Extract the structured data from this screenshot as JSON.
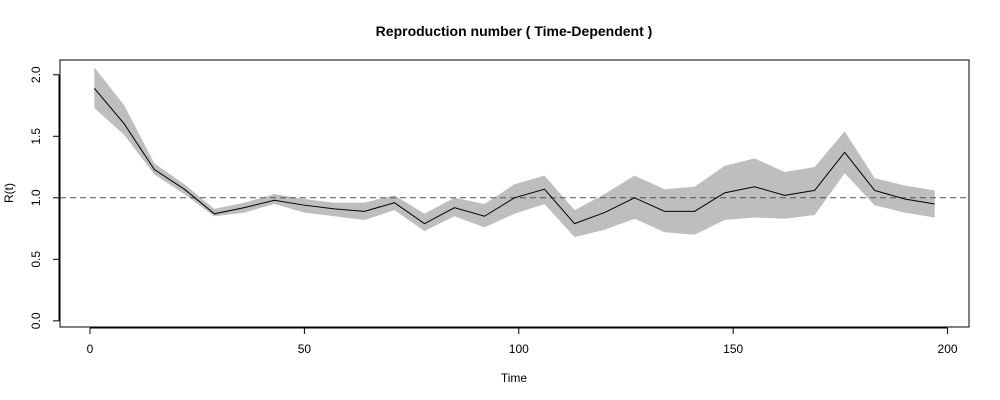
{
  "chart_data": {
    "type": "line",
    "title": "Reproduction number ( Time-Dependent )",
    "xlabel": "Time",
    "ylabel": "R(t)",
    "xlim": [
      -7,
      205
    ],
    "ylim": [
      -0.05,
      2.12
    ],
    "xticks": [
      0,
      50,
      100,
      150,
      200
    ],
    "yticks": [
      0.0,
      0.5,
      1.0,
      1.5,
      2.0
    ],
    "xtick_labels": [
      "0",
      "50",
      "100",
      "150",
      "200"
    ],
    "ytick_labels": [
      "0.0",
      "0.5",
      "1.0",
      "1.5",
      "2.0"
    ],
    "reference_line": {
      "y": 1.0,
      "style": "dashed"
    },
    "grid": false,
    "colors": {
      "line": "#000000",
      "band": "#bebebe",
      "reference": "#555555"
    },
    "series": [
      {
        "x": [
          1,
          8,
          15,
          22,
          29,
          36,
          43,
          50,
          57,
          64,
          71,
          78,
          85,
          92,
          99,
          106,
          113,
          120,
          127,
          134,
          141,
          148,
          155,
          162,
          169,
          176,
          183,
          190,
          197
        ],
        "y": [
          1.89,
          1.6,
          1.23,
          1.07,
          0.87,
          0.92,
          0.98,
          0.94,
          0.91,
          0.89,
          0.96,
          0.79,
          0.92,
          0.85,
          1.0,
          1.07,
          0.79,
          0.88,
          1.0,
          0.89,
          0.89,
          1.04,
          1.09,
          1.02,
          1.06,
          1.37,
          1.06,
          0.99,
          0.95
        ],
        "lower": [
          1.73,
          1.51,
          1.19,
          1.03,
          0.85,
          0.88,
          0.95,
          0.88,
          0.85,
          0.82,
          0.9,
          0.73,
          0.85,
          0.76,
          0.87,
          0.95,
          0.68,
          0.74,
          0.83,
          0.72,
          0.7,
          0.82,
          0.84,
          0.83,
          0.86,
          1.2,
          0.94,
          0.88,
          0.84
        ],
        "upper": [
          2.06,
          1.75,
          1.28,
          1.11,
          0.91,
          0.96,
          1.03,
          0.99,
          0.96,
          0.96,
          1.02,
          0.87,
          1.0,
          0.95,
          1.11,
          1.18,
          0.9,
          1.03,
          1.18,
          1.07,
          1.09,
          1.26,
          1.32,
          1.21,
          1.25,
          1.54,
          1.16,
          1.1,
          1.06
        ]
      }
    ]
  }
}
